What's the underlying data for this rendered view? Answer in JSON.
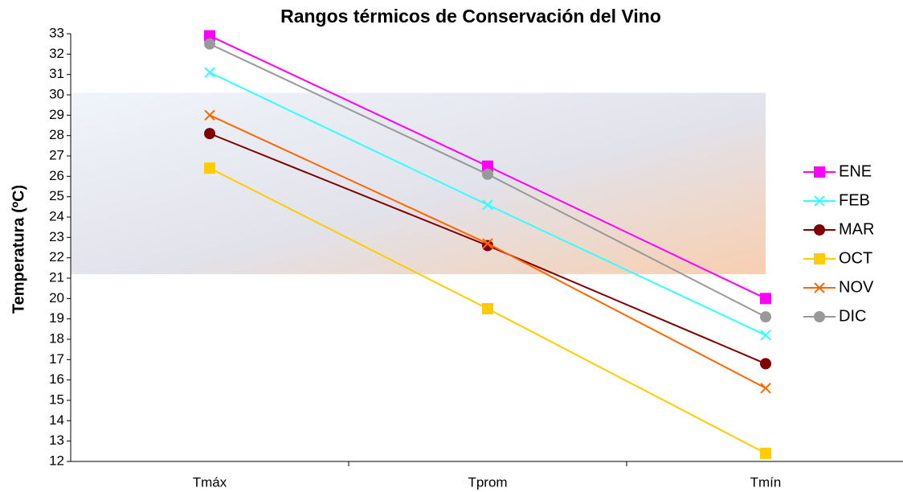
{
  "chart_data": {
    "type": "line",
    "title": "Rangos térmicos de Conservación del Vino",
    "y_label": "Temperatura (ºC)",
    "categories": [
      "Tmáx",
      "Tprom",
      "Tmín"
    ],
    "series": [
      {
        "name": "ENE",
        "color": "#ff00ff",
        "marker": "square",
        "values": [
          32.9,
          26.5,
          20.0
        ]
      },
      {
        "name": "FEB",
        "color": "#33ffff",
        "marker": "x",
        "values": [
          31.1,
          24.6,
          18.2
        ]
      },
      {
        "name": "MAR",
        "color": "#800000",
        "marker": "circle",
        "values": [
          28.1,
          22.6,
          16.8
        ]
      },
      {
        "name": "OCT",
        "color": "#ffcc00",
        "marker": "square",
        "values": [
          26.4,
          19.5,
          12.4
        ]
      },
      {
        "name": "NOV",
        "color": "#ff6600",
        "marker": "x",
        "values": [
          29.0,
          22.7,
          15.6
        ]
      },
      {
        "name": "DIC",
        "color": "#999999",
        "marker": "circle",
        "values": [
          32.5,
          26.1,
          19.1
        ]
      }
    ],
    "shaded_range": [
      21.2,
      30.1
    ],
    "ylim": [
      12,
      33
    ],
    "yticks": [
      12,
      13,
      14,
      15,
      16,
      17,
      18,
      19,
      20,
      21,
      22,
      23,
      24,
      25,
      26,
      27,
      28,
      29,
      30,
      31,
      32,
      33
    ],
    "legend": "right"
  }
}
